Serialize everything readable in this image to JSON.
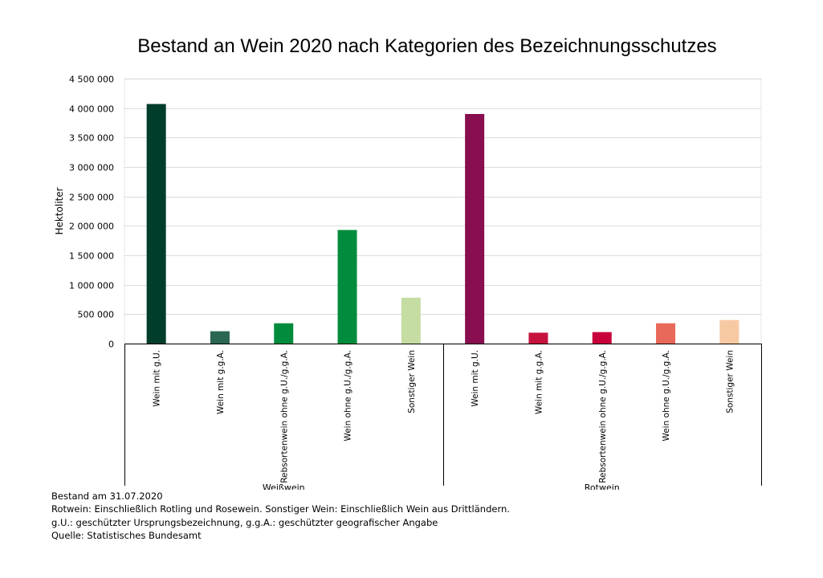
{
  "chart_data": {
    "type": "bar",
    "title": "Bestand an Wein 2020 nach Kategorien des Bezeichnungsschutzes",
    "ylabel": "Hektoliter",
    "ylim": [
      0,
      4500000
    ],
    "yticks": [
      {
        "value": 0,
        "label": "0"
      },
      {
        "value": 500000,
        "label": "500 000"
      },
      {
        "value": 1000000,
        "label": "1 000 000"
      },
      {
        "value": 1500000,
        "label": "1 500 000"
      },
      {
        "value": 2000000,
        "label": "2 000 000"
      },
      {
        "value": 2500000,
        "label": "2 500 000"
      },
      {
        "value": 3000000,
        "label": "3 000 000"
      },
      {
        "value": 3500000,
        "label": "3 500 000"
      },
      {
        "value": 4000000,
        "label": "4 000 000"
      },
      {
        "value": 4500000,
        "label": "4 500 000"
      }
    ],
    "grid": true,
    "groups": [
      {
        "name": "Weißwein",
        "categories": [
          "Wein mit g.U.",
          "Wein mit g.g.A.",
          "Rebsortenwein ohne g.U./g.g.A.",
          "Wein ohne g.U./g.g.A.",
          "Sonstiger Wein"
        ],
        "values": [
          4070000,
          210000,
          345000,
          1930000,
          780000
        ],
        "colors": [
          "#003d2b",
          "#2a6651",
          "#008c3c",
          "#008c3c",
          "#c5dca3"
        ]
      },
      {
        "name": "Rotwein",
        "categories": [
          "Wein mit g.U.",
          "Wein mit g.g.A.",
          "Rebsortenwein ohne g.U./g.g.A.",
          "Wein ohne g.U./g.g.A.",
          "Sonstiger Wein"
        ],
        "values": [
          3900000,
          185000,
          195000,
          345000,
          400000
        ],
        "colors": [
          "#880e4f",
          "#c5133d",
          "#c8003c",
          "#e8685a",
          "#f7c9a3"
        ]
      }
    ]
  },
  "notes": {
    "line1": "Bestand am 31.07.2020",
    "line2": "Rotwein: Einschließlich Rotling und Rosewein. Sonstiger Wein: Einschließlich Wein aus Drittländern.",
    "line3": "g.U.: geschützter Ursprungsbezeichnung, g.g.A.: geschützter geografischer Angabe",
    "line4": "Quelle: Statistisches Bundesamt"
  }
}
